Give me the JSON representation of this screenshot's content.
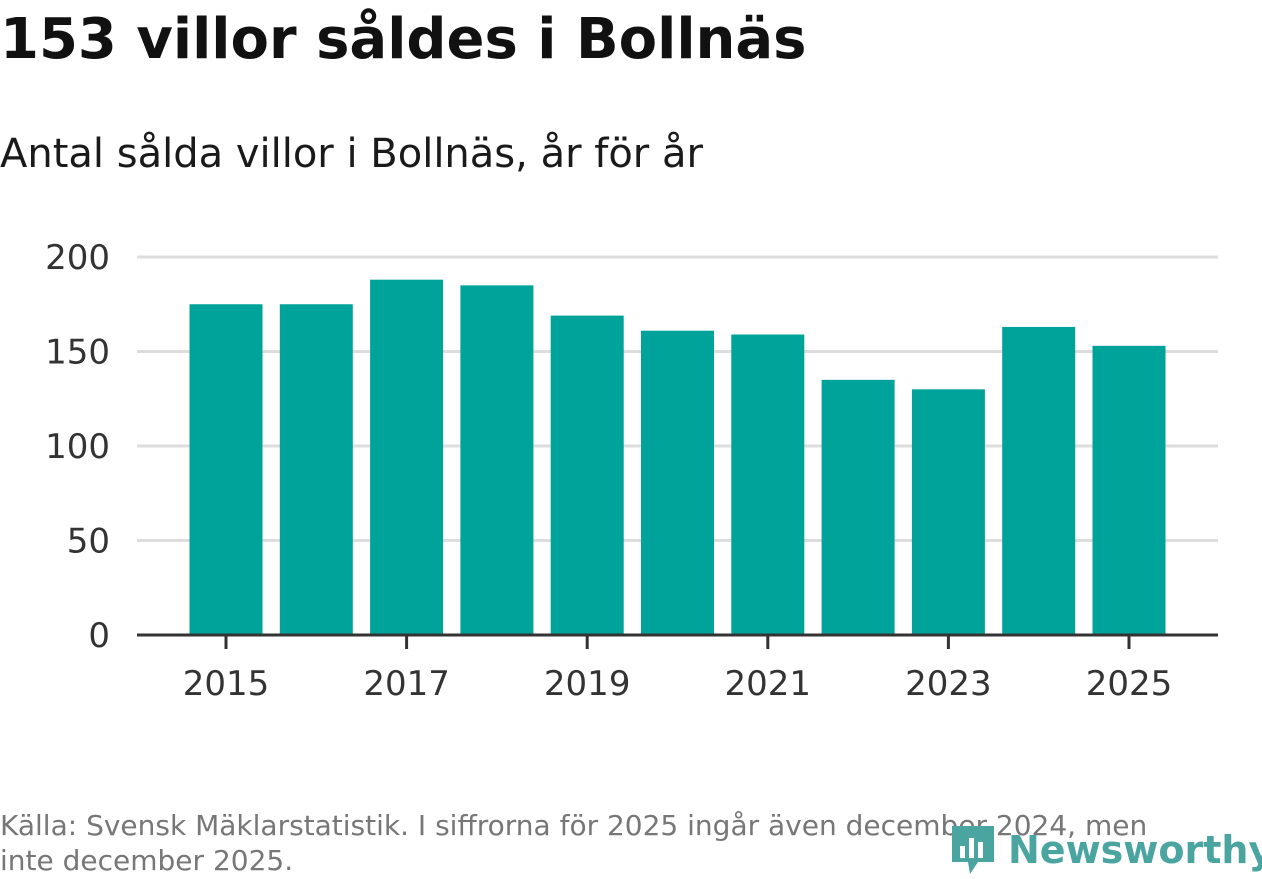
{
  "chart_data": {
    "type": "bar",
    "title": "153 villor såldes i Bollnäs",
    "subtitle": "Antal sålda villor i Bollnäs, år för år",
    "categories": [
      "2015",
      "2016",
      "2017",
      "2018",
      "2019",
      "2020",
      "2021",
      "2022",
      "2023",
      "2024",
      "2025"
    ],
    "values": [
      175,
      175,
      188,
      185,
      169,
      161,
      159,
      135,
      130,
      163,
      153
    ],
    "x_tick_labels": [
      "2015",
      "2017",
      "2019",
      "2021",
      "2023",
      "2025"
    ],
    "y_ticks": [
      0,
      50,
      100,
      150,
      200
    ],
    "ylim": [
      0,
      200
    ],
    "grid": true,
    "bar_color": "#00a39a"
  },
  "footer": {
    "source": "Källa: Svensk Mäklarstatistik. I siffrorna för 2025 ingår även december 2024, men inte december 2025."
  },
  "logo": {
    "name": "Newsworthy",
    "color": "#4aa5a0"
  }
}
